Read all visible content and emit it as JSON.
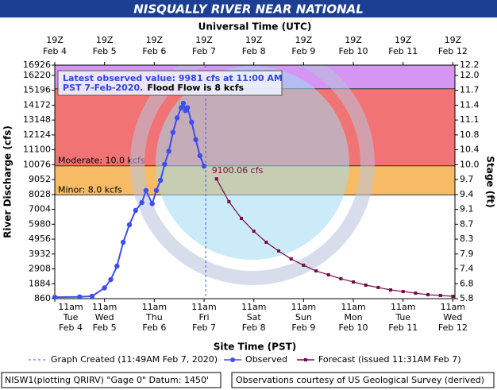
{
  "chart_data": {
    "type": "line",
    "title": "NISQUALLY RIVER NEAR NATIONAL",
    "top_axis_label": "Universal Time (UTC)",
    "x_label": "Site Time (PST)",
    "y_label": "River Discharge (cfs)",
    "y2_label": "Stage (ft)",
    "xlim": [
      "2020-02-04T11:00",
      "2020-02-12T12:00"
    ],
    "xticks": [
      {
        "value": "2020-02-04T11:00",
        "label": [
          "11am",
          "Tue",
          "Feb 4"
        ],
        "top_label": [
          "19Z",
          "Feb 4"
        ]
      },
      {
        "value": "2020-02-05T11:00",
        "label": [
          "11am",
          "Wed",
          "Feb 5"
        ],
        "top_label": [
          "19Z",
          "Feb 5"
        ]
      },
      {
        "value": "2020-02-06T11:00",
        "label": [
          "11am",
          "Thu",
          "Feb 6"
        ],
        "top_label": [
          "19Z",
          "Feb 6"
        ]
      },
      {
        "value": "2020-02-07T11:00",
        "label": [
          "11am",
          "Fri",
          "Feb 7"
        ],
        "top_label": [
          "19Z",
          "Feb 7"
        ]
      },
      {
        "value": "2020-02-08T11:00",
        "label": [
          "11am",
          "Sat",
          "Feb 8"
        ],
        "top_label": [
          "19Z",
          "Feb 8"
        ]
      },
      {
        "value": "2020-02-09T11:00",
        "label": [
          "11am",
          "Sun",
          "Feb 9"
        ],
        "top_label": [
          "19Z",
          "Feb 9"
        ]
      },
      {
        "value": "2020-02-10T11:00",
        "label": [
          "11am",
          "Mon",
          "Feb 10"
        ],
        "top_label": [
          "19Z",
          "Feb 10"
        ]
      },
      {
        "value": "2020-02-11T11:00",
        "label": [
          "11am",
          "Tue",
          "Feb 11"
        ],
        "top_label": [
          "19Z",
          "Feb 11"
        ]
      },
      {
        "value": "2020-02-12T11:00",
        "label": [
          "11am",
          "Wed",
          "Feb 12"
        ],
        "top_label": [
          "19Z",
          "Feb 12"
        ]
      }
    ],
    "ylim": [
      860,
      16926
    ],
    "yticks": [
      860,
      1884,
      2908,
      3932,
      4956,
      5980,
      7004,
      8028,
      9052,
      10076,
      11100,
      12124,
      13148,
      14172,
      15196,
      16220,
      16926
    ],
    "y2ticks": [
      5.8,
      6.8,
      7.4,
      7.9,
      8.3,
      8.7,
      9.1,
      9.4,
      9.7,
      {
        "value": 10,
        "label": "10.0"
      },
      10.4,
      10.8,
      11.1,
      11.4,
      11.7,
      {
        "value": 12,
        "label": "12.0"
      },
      12.2
    ],
    "grid": false,
    "bands": [
      {
        "from": 8000,
        "to": 10000,
        "color": "#f7bb66",
        "label": "Minor: 8.0 kcfs"
      },
      {
        "from": 10000,
        "to": 15300,
        "color": "#f27373",
        "label": "Moderate: 10.0 kcfs"
      },
      {
        "from": 15300,
        "to": 16926,
        "color": "#d495f3"
      }
    ],
    "graph_created": {
      "x": "2020-02-07T11:49",
      "label": "Graph Created (11:49AM Feb 7, 2020)",
      "color": "#4a5bd8"
    },
    "annotation": {
      "lines": [
        "Latest observed value: 9981 cfs at 11:00 AM",
        "PST 7-Feb-2020."
      ],
      "bold": "Flood Flow is 8 kcfs"
    },
    "series": [
      {
        "name": "Observed",
        "color": "#3d4ef0",
        "marker": "circle",
        "x": [
          "2020-02-04T11:00",
          "2020-02-04T23:00",
          "2020-02-05T05:00",
          "2020-02-05T11:00",
          "2020-02-05T14:00",
          "2020-02-05T17:00",
          "2020-02-05T20:00",
          "2020-02-05T23:00",
          "2020-02-06T02:00",
          "2020-02-06T05:00",
          "2020-02-06T07:00",
          "2020-02-06T10:00",
          "2020-02-06T12:00",
          "2020-02-06T14:00",
          "2020-02-06T16:00",
          "2020-02-06T18:00",
          "2020-02-06T20:00",
          "2020-02-06T22:00",
          "2020-02-07T00:00",
          "2020-02-07T01:00",
          "2020-02-07T02:00",
          "2020-02-07T03:00",
          "2020-02-07T05:00",
          "2020-02-07T07:00",
          "2020-02-07T09:00",
          "2020-02-07T11:00"
        ],
        "values": [
          960,
          980,
          1030,
          1600,
          2170,
          3100,
          4740,
          5940,
          6930,
          7470,
          8300,
          7400,
          8300,
          9000,
          10100,
          11000,
          12300,
          13300,
          14000,
          14300,
          13800,
          14000,
          13000,
          11800,
          10700,
          9981
        ]
      },
      {
        "name": "Forecast (issued 11:31AM Feb 7)",
        "color": "#7a0a46",
        "marker": "square",
        "x": [
          "2020-02-07T17:00",
          "2020-02-07T23:00",
          "2020-02-08T05:00",
          "2020-02-08T11:00",
          "2020-02-08T17:00",
          "2020-02-08T23:00",
          "2020-02-09T05:00",
          "2020-02-09T11:00",
          "2020-02-09T17:00",
          "2020-02-09T23:00",
          "2020-02-10T05:00",
          "2020-02-10T11:00",
          "2020-02-10T17:00",
          "2020-02-10T23:00",
          "2020-02-11T05:00",
          "2020-02-11T11:00",
          "2020-02-11T17:00",
          "2020-02-11T23:00",
          "2020-02-12T05:00",
          "2020-02-12T11:00"
        ],
        "values": [
          9100.06,
          7530,
          6380,
          5500,
          4740,
          4140,
          3590,
          3160,
          2770,
          2500,
          2230,
          2010,
          1790,
          1630,
          1460,
          1350,
          1240,
          1130,
          1080,
          1020
        ],
        "value_labels": [
          "9100.06 cfs",
          null,
          null,
          null,
          null,
          null,
          null,
          null,
          null,
          null,
          null,
          null,
          null,
          null,
          null,
          null,
          null,
          null,
          null,
          null
        ]
      }
    ]
  },
  "footer": {
    "left": "NISW1(plotting QRIRV) \"Gage 0\" Datum: 1450'",
    "right": "Observations courtesy of US Geological Survey (derived)"
  }
}
